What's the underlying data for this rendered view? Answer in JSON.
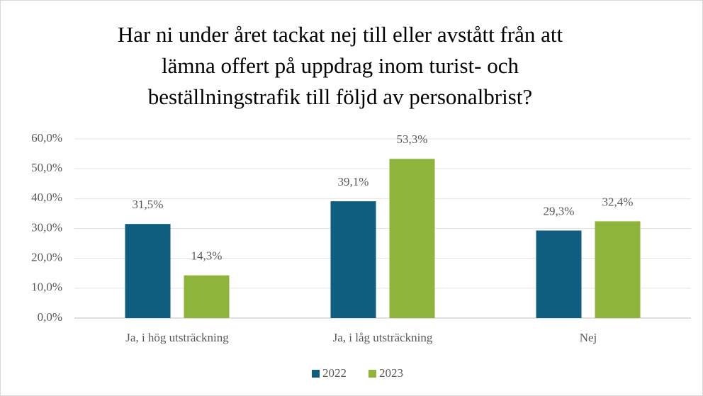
{
  "chart_data": {
    "type": "bar",
    "title": [
      "Har ni under året tackat nej till eller avstått från att",
      "lämna offert på uppdrag inom turist- och",
      "beställningstrafik till följd av personalbrist?"
    ],
    "categories": [
      "Ja, i hög utsträckning",
      "Ja, i låg utsträckning",
      "Nej"
    ],
    "series": [
      {
        "name": "2022",
        "color": "#0f5e80",
        "values": [
          31.5,
          39.1,
          29.3
        ],
        "value_labels": [
          "31,5%",
          "39,1%",
          "29,3%"
        ]
      },
      {
        "name": "2023",
        "color": "#8fb43c",
        "values": [
          14.3,
          53.3,
          32.4
        ],
        "value_labels": [
          "14,3%",
          "53,3%",
          "32,4%"
        ]
      }
    ],
    "ylim": [
      0,
      60
    ],
    "yticks": [
      {
        "value": 0,
        "label": "0,0%"
      },
      {
        "value": 10,
        "label": "10,0%"
      },
      {
        "value": 20,
        "label": "20,0%"
      },
      {
        "value": 30,
        "label": "30,0%"
      },
      {
        "value": 40,
        "label": "40,0%"
      },
      {
        "value": 50,
        "label": "50,0%"
      },
      {
        "value": 60,
        "label": "60,0%"
      }
    ],
    "grid": true,
    "legend": "bottom"
  }
}
